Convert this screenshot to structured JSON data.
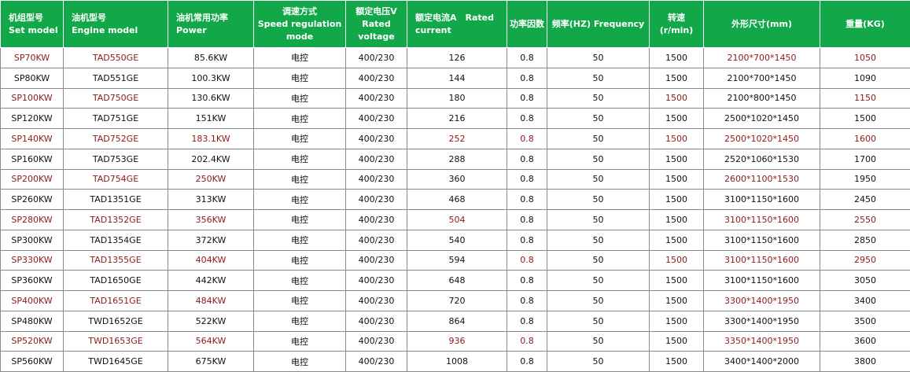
{
  "headers": [
    {
      "zh": "机组型号",
      "en": "Set model",
      "align": "left"
    },
    {
      "zh": "油机型号",
      "en": "Engine model",
      "align": "left"
    },
    {
      "zh": "油机常用功率",
      "en": "Power",
      "align": "left"
    },
    {
      "zh": "调速方式",
      "en": "Speed regulation mode",
      "align": "center"
    },
    {
      "zh": "额定电压V",
      "en": "Rated voltage",
      "align": "center"
    },
    {
      "zh": "额定电流A　Rated",
      "en": "current",
      "align": "left"
    },
    {
      "zh": "功率因数",
      "en": "",
      "align": "center"
    },
    {
      "zh": "频率(HZ) Frequency",
      "en": "",
      "align": "center"
    },
    {
      "zh": "转速",
      "en": "(r/min)",
      "align": "center"
    },
    {
      "zh": "外形尺寸(mm)",
      "en": "",
      "align": "center"
    },
    {
      "zh": "重量(KG)",
      "en": "",
      "align": "center"
    }
  ],
  "rows": [
    [
      "SP70KW",
      "TAD550GE",
      "85.6KW",
      "电控",
      "400/230",
      "126",
      "0.8",
      "50",
      "1500",
      "2100*700*1450",
      "1050"
    ],
    [
      "SP80KW",
      "TAD551GE",
      "100.3KW",
      "电控",
      "400/230",
      "144",
      "0.8",
      "50",
      "1500",
      "2100*700*1450",
      "1090"
    ],
    [
      "SP100KW",
      "TAD750GE",
      "130.6KW",
      "电控",
      "400/230",
      "180",
      "0.8",
      "50",
      "1500",
      "2100*800*1450",
      "1150"
    ],
    [
      "SP120KW",
      "TAD751GE",
      "151KW",
      "电控",
      "400/230",
      "216",
      "0.8",
      "50",
      "1500",
      "2500*1020*1450",
      "1500"
    ],
    [
      "SP140KW",
      "TAD752GE",
      "183.1KW",
      "电控",
      "400/230",
      "252",
      "0.8",
      "50",
      "1500",
      "2500*1020*1450",
      "1600"
    ],
    [
      "SP160KW",
      "TAD753GE",
      "202.4KW",
      "电控",
      "400/230",
      "288",
      "0.8",
      "50",
      "1500",
      "2520*1060*1530",
      "1700"
    ],
    [
      "SP200KW",
      "TAD754GE",
      "250KW",
      "电控",
      "400/230",
      "360",
      "0.8",
      "50",
      "1500",
      "2600*1100*1530",
      "1950"
    ],
    [
      "SP260KW",
      "TAD1351GE",
      "313KW",
      "电控",
      "400/230",
      "468",
      "0.8",
      "50",
      "1500",
      "3100*1150*1600",
      "2450"
    ],
    [
      "SP280KW",
      "TAD1352GE",
      "356KW",
      "电控",
      "400/230",
      "504",
      "0.8",
      "50",
      "1500",
      "3100*1150*1600",
      "2550"
    ],
    [
      "SP300KW",
      "TAD1354GE",
      "372KW",
      "电控",
      "400/230",
      "540",
      "0.8",
      "50",
      "1500",
      "3100*1150*1600",
      "2850"
    ],
    [
      "SP330KW",
      "TAD1355GE",
      "404KW",
      "电控",
      "400/230",
      "594",
      "0.8",
      "50",
      "1500",
      "3100*1150*1600",
      "2950"
    ],
    [
      "SP360KW",
      "TAD1650GE",
      "442KW",
      "电控",
      "400/230",
      "648",
      "0.8",
      "50",
      "1500",
      "3100*1150*1600",
      "3050"
    ],
    [
      "SP400KW",
      "TAD1651GE",
      "484KW",
      "电控",
      "400/230",
      "720",
      "0.8",
      "50",
      "1500",
      "3300*1400*1950",
      "3400"
    ],
    [
      "SP480KW",
      "TWD1652GE",
      "522KW",
      "电控",
      "400/230",
      "864",
      "0.8",
      "50",
      "1500",
      "3300*1400*1950",
      "3500"
    ],
    [
      "SP520KW",
      "TWD1653GE",
      "564KW",
      "电控",
      "400/230",
      "936",
      "0.8",
      "50",
      "1500",
      "3350*1400*1950",
      "3600"
    ],
    [
      "SP560KW",
      "TWD1645GE",
      "675KW",
      "电控",
      "400/230",
      "1008",
      "0.8",
      "50",
      "1500",
      "3400*1400*2000",
      "3800"
    ]
  ],
  "red_cells": {
    "0": [
      0,
      1,
      9,
      10
    ],
    "2": [
      0,
      1,
      8,
      10
    ],
    "4": [
      0,
      1,
      2,
      5,
      6,
      8,
      9,
      10
    ],
    "6": [
      0,
      1,
      2,
      9
    ],
    "8": [
      0,
      1,
      2,
      5,
      9,
      10
    ],
    "10": [
      0,
      1,
      2,
      6,
      8,
      9,
      10
    ],
    "12": [
      0,
      1,
      2,
      9
    ],
    "14": [
      0,
      1,
      2,
      5,
      6,
      9
    ]
  },
  "colors": {
    "header_bg": "#12a84a",
    "header_text": "#ffffff",
    "red_text": "#8b1a1a",
    "cell_text": "#111111",
    "grid": "#8a8a8a"
  }
}
